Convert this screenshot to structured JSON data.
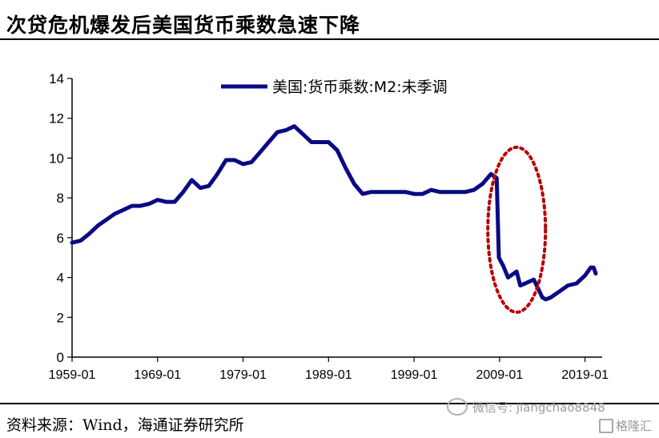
{
  "header": {
    "title": "次贷危机爆发后美国货币乘数急速下降"
  },
  "footer": {
    "source": "资料来源：Wind，海通证券研究所",
    "watermark": "微信号: jiangchao8848",
    "brand": "格隆汇"
  },
  "chart_data": {
    "type": "line",
    "x_ticks": [
      "1959-01",
      "1969-01",
      "1979-01",
      "1989-01",
      "1999-01",
      "2009-01",
      "2019-01"
    ],
    "x_range": [
      "1959-01",
      "2021-01"
    ],
    "ylim": [
      0,
      14
    ],
    "y_ticks": [
      0,
      2,
      4,
      6,
      8,
      10,
      12,
      14
    ],
    "grid": false,
    "legend_position": "top-center",
    "highlight": "dotted ellipse around 2008-2013 decline",
    "colors": {
      "line": "#0a0a85",
      "highlight": "#b80000"
    },
    "series": [
      {
        "name": "美国:货币乘数:M2:未季调",
        "points": [
          [
            "1959-01",
            5.75
          ],
          [
            "1960-01",
            5.85
          ],
          [
            "1961-01",
            6.2
          ],
          [
            "1962-01",
            6.6
          ],
          [
            "1963-01",
            6.9
          ],
          [
            "1964-01",
            7.2
          ],
          [
            "1965-01",
            7.4
          ],
          [
            "1966-01",
            7.6
          ],
          [
            "1967-01",
            7.6
          ],
          [
            "1968-01",
            7.7
          ],
          [
            "1969-01",
            7.9
          ],
          [
            "1970-01",
            7.8
          ],
          [
            "1971-01",
            7.8
          ],
          [
            "1972-01",
            8.3
          ],
          [
            "1973-01",
            8.9
          ],
          [
            "1974-01",
            8.5
          ],
          [
            "1975-01",
            8.6
          ],
          [
            "1976-01",
            9.2
          ],
          [
            "1977-01",
            9.9
          ],
          [
            "1978-01",
            9.9
          ],
          [
            "1979-01",
            9.7
          ],
          [
            "1980-01",
            9.8
          ],
          [
            "1981-01",
            10.3
          ],
          [
            "1982-01",
            10.8
          ],
          [
            "1983-01",
            11.3
          ],
          [
            "1984-01",
            11.4
          ],
          [
            "1985-01",
            11.6
          ],
          [
            "1986-01",
            11.2
          ],
          [
            "1987-01",
            10.8
          ],
          [
            "1988-01",
            10.8
          ],
          [
            "1989-01",
            10.8
          ],
          [
            "1990-01",
            10.4
          ],
          [
            "1991-01",
            9.5
          ],
          [
            "1992-01",
            8.7
          ],
          [
            "1993-01",
            8.2
          ],
          [
            "1994-01",
            8.3
          ],
          [
            "1995-01",
            8.3
          ],
          [
            "1996-01",
            8.3
          ],
          [
            "1997-01",
            8.3
          ],
          [
            "1998-01",
            8.3
          ],
          [
            "1999-01",
            8.2
          ],
          [
            "2000-01",
            8.2
          ],
          [
            "2001-01",
            8.4
          ],
          [
            "2002-01",
            8.3
          ],
          [
            "2003-01",
            8.3
          ],
          [
            "2004-01",
            8.3
          ],
          [
            "2005-01",
            8.3
          ],
          [
            "2006-01",
            8.4
          ],
          [
            "2007-01",
            8.7
          ],
          [
            "2008-01",
            9.2
          ],
          [
            "2008-09",
            9.0
          ],
          [
            "2008-12",
            5.0
          ],
          [
            "2009-06",
            4.6
          ],
          [
            "2010-01",
            4.0
          ],
          [
            "2011-01",
            4.3
          ],
          [
            "2011-06",
            3.6
          ],
          [
            "2012-01",
            3.7
          ],
          [
            "2013-01",
            3.9
          ],
          [
            "2014-01",
            3.0
          ],
          [
            "2014-06",
            2.9
          ],
          [
            "2015-01",
            3.0
          ],
          [
            "2016-01",
            3.3
          ],
          [
            "2017-01",
            3.6
          ],
          [
            "2018-01",
            3.7
          ],
          [
            "2019-01",
            4.1
          ],
          [
            "2019-09",
            4.5
          ],
          [
            "2020-01",
            4.5
          ],
          [
            "2020-04",
            4.2
          ]
        ]
      }
    ]
  }
}
